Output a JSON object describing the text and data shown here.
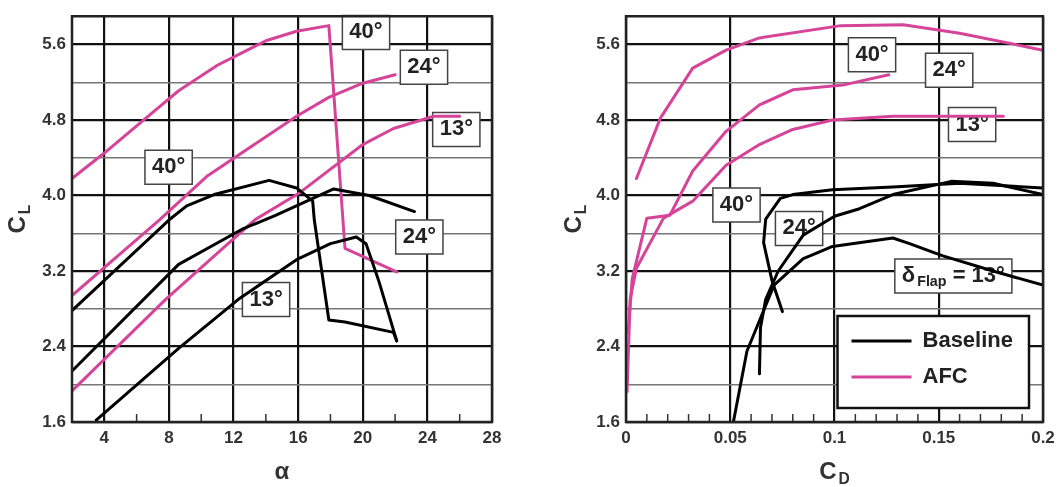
{
  "chart_data": [
    {
      "type": "line",
      "xlabel": "α",
      "ylabel": "C$_{L}$",
      "xlim": [
        2,
        28
      ],
      "ylim": [
        1.6,
        5.9
      ],
      "xticks": [
        4,
        {
          "value": 6,
          "label": null
        },
        8,
        {
          "value": 10,
          "label": null
        },
        12,
        {
          "value": 14,
          "label": null
        },
        16,
        {
          "value": 18,
          "label": null
        },
        20,
        {
          "value": 22,
          "label": null
        },
        24,
        {
          "value": 26,
          "label": null
        },
        28
      ],
      "yticks": [
        1.6,
        {
          "value": 2,
          "label": null
        },
        2.4,
        {
          "value": 2.8,
          "label": null
        },
        3.2,
        {
          "value": 3.6,
          "label": null
        },
        {
          "value": 4,
          "label": "4.0"
        },
        {
          "value": 4.4,
          "label": null
        },
        4.8,
        {
          "value": 5.2,
          "label": null
        },
        5.6
      ],
      "grid": true,
      "legend": false,
      "series": [
        {
          "color": "#000000",
          "x": [
            2,
            8,
            9.1,
            10.8,
            14.2,
            15.9,
            16.9,
            17,
            17.9,
            18.9,
            21.9,
            22.1
          ],
          "values": [
            2.78,
            3.74,
            3.89,
            4.01,
            4.16,
            4.08,
            3.94,
            3.74,
            2.68,
            2.66,
            2.55,
            2.46
          ]
        },
        {
          "color": "#000000",
          "x": [
            2,
            8.6,
            12.5,
            14.6,
            18.2,
            20.4,
            23.2
          ],
          "values": [
            2.14,
            3.27,
            3.64,
            3.79,
            4.07,
            4,
            3.83
          ]
        },
        {
          "color": "#000000",
          "x": [
            3.5,
            8.6,
            12.3,
            15.9,
            18,
            19.6,
            20.2,
            21,
            22.1
          ],
          "values": [
            1.62,
            2.38,
            2.9,
            3.32,
            3.49,
            3.56,
            3.49,
            3.09,
            2.46
          ]
        },
        {
          "color": "#d6449a",
          "x": [
            2,
            4,
            6.5,
            8.6,
            11,
            14,
            15.9,
            17.9,
            18.9,
            22.1
          ],
          "values": [
            4.18,
            4.45,
            4.81,
            5.11,
            5.38,
            5.64,
            5.74,
            5.8,
            3.44,
            3.19
          ]
        },
        {
          "color": "#d6449a",
          "x": [
            2,
            7.4,
            10.4,
            15.9,
            17.9,
            20,
            22
          ],
          "values": [
            2.94,
            3.74,
            4.21,
            4.84,
            5.04,
            5.19,
            5.28
          ]
        },
        {
          "color": "#d6449a",
          "x": [
            2,
            7.8,
            13.3,
            16.1,
            20,
            21.9,
            24.4,
            26
          ],
          "values": [
            1.93,
            2.9,
            3.74,
            4.03,
            4.54,
            4.71,
            4.84,
            4.84
          ]
        }
      ],
      "annotations": [
        "40°",
        "24°",
        "13°",
        "40°",
        "24°",
        "13°"
      ]
    },
    {
      "type": "line",
      "xlabel": "C$_{D}$",
      "ylabel": "C$_{L}$",
      "xlim": [
        0,
        0.2
      ],
      "ylim": [
        1.6,
        5.9
      ],
      "xticks": [
        0,
        {
          "value": 0.01,
          "label": null
        },
        {
          "value": 0.02,
          "label": null
        },
        {
          "value": 0.03,
          "label": null
        },
        {
          "value": 0.04,
          "label": null
        },
        0.05,
        {
          "value": 0.06,
          "label": null
        },
        {
          "value": 0.07,
          "label": null
        },
        {
          "value": 0.08,
          "label": null
        },
        {
          "value": 0.09,
          "label": null
        },
        0.1,
        {
          "value": 0.11,
          "label": null
        },
        {
          "value": 0.12,
          "label": null
        },
        {
          "value": 0.13,
          "label": null
        },
        {
          "value": 0.14,
          "label": null
        },
        0.15,
        {
          "value": 0.16,
          "label": null
        },
        {
          "value": 0.17,
          "label": null
        },
        {
          "value": 0.18,
          "label": null
        },
        {
          "value": 0.19,
          "label": null
        },
        0.2
      ],
      "yticks": [
        1.6,
        {
          "value": 2,
          "label": null
        },
        2.4,
        {
          "value": 2.8,
          "label": null
        },
        3.2,
        {
          "value": 3.6,
          "label": null
        },
        {
          "value": 4,
          "label": "4.0"
        },
        {
          "value": 4.4,
          "label": null
        },
        4.8,
        {
          "value": 5.2,
          "label": null
        },
        5.6
      ],
      "grid": true,
      "legend": "bottom right",
      "series": [
        {
          "name": "Baseline",
          "color": "#000000",
          "x": [
            0.075,
            0.07,
            0.066,
            0.067,
            0.074,
            0.08,
            0.099,
            0.128,
            0.16,
            0.2
          ],
          "values": [
            2.77,
            3.1,
            3.5,
            3.75,
            3.97,
            4.01,
            4.06,
            4.09,
            4.13,
            4.08
          ]
        },
        {
          "color": "#000000",
          "x": [
            0.064,
            0.0645,
            0.067,
            0.073,
            0.085,
            0.1,
            0.112,
            0.128,
            0.156,
            0.176,
            0.2
          ],
          "values": [
            2.11,
            2.6,
            2.9,
            3.2,
            3.58,
            3.78,
            3.86,
            4.01,
            4.15,
            4.13,
            4.01
          ]
        },
        {
          "color": "#000000",
          "x": [
            0.0515,
            0.058,
            0.071,
            0.085,
            0.099,
            0.128,
            0.136,
            0.152,
            0.176,
            0.2
          ],
          "values": [
            1.6,
            2.35,
            3.05,
            3.33,
            3.46,
            3.55,
            3.49,
            3.36,
            3.2,
            3.05
          ]
        },
        {
          "name": "AFC",
          "color": "#d6449a",
          "x": [
            0.005,
            0.0165,
            0.032,
            0.048,
            0.064,
            0.103,
            0.133,
            0.16,
            0.2
          ],
          "values": [
            4.18,
            4.82,
            5.35,
            5.54,
            5.67,
            5.8,
            5.81,
            5.72,
            5.54
          ]
        },
        {
          "color": "#d6449a",
          "x": [
            0.001,
            0.003,
            0.01,
            0.021,
            0.032,
            0.048,
            0.064,
            0.08,
            0.104,
            0.126
          ],
          "values": [
            2.55,
            3.12,
            3.76,
            3.79,
            4.26,
            4.68,
            4.96,
            5.12,
            5.17,
            5.28
          ]
        },
        {
          "color": "#d6449a",
          "x": [
            0.0005,
            0.002,
            0.005,
            0.018,
            0.032,
            0.048,
            0.064,
            0.08,
            0.099,
            0.128,
            0.181
          ],
          "values": [
            1.92,
            2.9,
            3.23,
            3.76,
            3.94,
            4.32,
            4.54,
            4.7,
            4.8,
            4.84,
            4.84
          ]
        }
      ],
      "annotations": [
        "40°",
        "24°",
        "13°",
        "40°",
        "24°",
        "δ$_{Flap}$ = 13°"
      ]
    }
  ]
}
